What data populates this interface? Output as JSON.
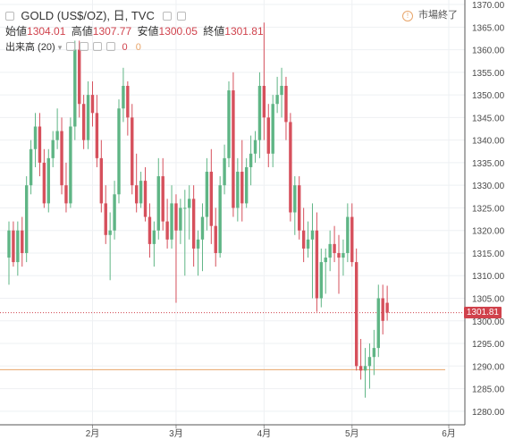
{
  "header": {
    "symbol": "GOLD (US$/OZ), 日, TVC",
    "market_status": "市場終了",
    "ohlc": {
      "open_label": "始値",
      "open": "1304.01",
      "high_label": "高値",
      "high": "1307.77",
      "low_label": "安値",
      "low": "1300.05",
      "close_label": "終値",
      "close": "1301.81"
    },
    "volume_label": "出来高 (20)",
    "volume_values": [
      "0",
      "0"
    ]
  },
  "colors": {
    "up": "#5fb585",
    "down": "#d6505c",
    "grid": "#eef0f3",
    "axis_text": "#4a4a4a",
    "price_line": "#d0424c",
    "level_line": "#e8a56a"
  },
  "last_price_label": "1301.81",
  "chart_data": {
    "type": "candlestick",
    "y_axis": {
      "min": 1277,
      "max": 1371,
      "ticks": [
        "1280.00",
        "1285.00",
        "1290.00",
        "1295.00",
        "1300.00",
        "1305.00",
        "1310.00",
        "1315.00",
        "1320.00",
        "1325.00",
        "1330.00",
        "1335.00",
        "1340.00",
        "1345.00",
        "1350.00",
        "1355.00",
        "1360.00",
        "1365.00",
        "1370.00"
      ]
    },
    "x_axis": {
      "labels": [
        {
          "label": "2月",
          "index": 19
        },
        {
          "label": "3月",
          "index": 38
        },
        {
          "label": "4月",
          "index": 58
        },
        {
          "label": "5月",
          "index": 78
        },
        {
          "label": "6月",
          "index": 100
        }
      ]
    },
    "horizontal_lines": [
      {
        "value": 1301.81,
        "style": "dotted",
        "color": "#d0424c"
      },
      {
        "value": 1289.2,
        "style": "solid",
        "color": "#e8a56a"
      }
    ],
    "ohlc": [
      [
        1314,
        1322,
        1308,
        1320
      ],
      [
        1320,
        1322,
        1312,
        1313
      ],
      [
        1313,
        1322,
        1310,
        1320
      ],
      [
        1320,
        1323,
        1312,
        1315
      ],
      [
        1315,
        1332,
        1313,
        1330
      ],
      [
        1330,
        1340,
        1328,
        1338
      ],
      [
        1338,
        1346,
        1334,
        1343
      ],
      [
        1343,
        1346,
        1332,
        1335
      ],
      [
        1335,
        1338,
        1325,
        1326
      ],
      [
        1326,
        1338,
        1324,
        1336
      ],
      [
        1336,
        1342,
        1334,
        1340
      ],
      [
        1340,
        1347,
        1338,
        1342
      ],
      [
        1342,
        1345,
        1328,
        1330
      ],
      [
        1330,
        1335,
        1324,
        1326
      ],
      [
        1326,
        1345,
        1325,
        1343
      ],
      [
        1343,
        1362,
        1340,
        1360
      ],
      [
        1360,
        1362,
        1345,
        1348
      ],
      [
        1348,
        1350,
        1338,
        1340
      ],
      [
        1340,
        1353,
        1338,
        1350
      ],
      [
        1350,
        1353,
        1343,
        1346
      ],
      [
        1346,
        1350,
        1334,
        1336
      ],
      [
        1336,
        1340,
        1324,
        1326
      ],
      [
        1326,
        1330,
        1317,
        1319
      ],
      [
        1319,
        1324,
        1309,
        1320
      ],
      [
        1320,
        1331,
        1318,
        1328
      ],
      [
        1328,
        1349,
        1326,
        1347
      ],
      [
        1347,
        1356,
        1344,
        1352
      ],
      [
        1352,
        1353,
        1341,
        1345
      ],
      [
        1345,
        1348,
        1328,
        1330
      ],
      [
        1330,
        1337,
        1324,
        1326
      ],
      [
        1326,
        1333,
        1325,
        1331
      ],
      [
        1331,
        1334,
        1322,
        1323
      ],
      [
        1323,
        1326,
        1314,
        1317
      ],
      [
        1317,
        1322,
        1312,
        1320
      ],
      [
        1320,
        1336,
        1318,
        1332
      ],
      [
        1332,
        1336,
        1320,
        1322
      ],
      [
        1322,
        1327,
        1316,
        1318
      ],
      [
        1318,
        1330,
        1316,
        1326
      ],
      [
        1326,
        1328,
        1304,
        1320
      ],
      [
        1320,
        1327,
        1317,
        1325
      ],
      [
        1325,
        1329,
        1310,
        1325
      ],
      [
        1325,
        1330,
        1318,
        1327
      ],
      [
        1327,
        1330,
        1312,
        1316
      ],
      [
        1316,
        1320,
        1310,
        1318
      ],
      [
        1318,
        1326,
        1311,
        1323
      ],
      [
        1323,
        1336,
        1320,
        1333
      ],
      [
        1333,
        1338,
        1317,
        1321
      ],
      [
        1321,
        1325,
        1312,
        1315
      ],
      [
        1315,
        1332,
        1314,
        1330
      ],
      [
        1330,
        1339,
        1328,
        1336
      ],
      [
        1336,
        1353,
        1334,
        1351
      ],
      [
        1351,
        1355,
        1323,
        1325
      ],
      [
        1325,
        1336,
        1322,
        1333
      ],
      [
        1333,
        1340,
        1322,
        1326
      ],
      [
        1326,
        1336,
        1325,
        1334
      ],
      [
        1334,
        1341,
        1330,
        1337
      ],
      [
        1337,
        1342,
        1335,
        1340
      ],
      [
        1340,
        1355,
        1336,
        1352
      ],
      [
        1352,
        1366,
        1340,
        1345
      ],
      [
        1345,
        1348,
        1334,
        1337
      ],
      [
        1337,
        1350,
        1334,
        1348
      ],
      [
        1348,
        1354,
        1346,
        1350
      ],
      [
        1350,
        1356,
        1345,
        1352
      ],
      [
        1352,
        1354,
        1340,
        1344
      ],
      [
        1344,
        1346,
        1322,
        1324
      ],
      [
        1324,
        1332,
        1319,
        1330
      ],
      [
        1330,
        1332,
        1318,
        1320
      ],
      [
        1320,
        1325,
        1313,
        1316
      ],
      [
        1316,
        1322,
        1314,
        1318
      ],
      [
        1318,
        1326,
        1305,
        1320
      ],
      [
        1320,
        1324,
        1302,
        1305
      ],
      [
        1305,
        1316,
        1303,
        1313
      ],
      [
        1313,
        1316,
        1306,
        1314
      ],
      [
        1314,
        1320,
        1311,
        1317
      ],
      [
        1317,
        1321,
        1313,
        1315
      ],
      [
        1315,
        1319,
        1306,
        1314
      ],
      [
        1314,
        1318,
        1310,
        1315
      ],
      [
        1315,
        1326,
        1313,
        1323
      ],
      [
        1323,
        1326,
        1312,
        1313
      ],
      [
        1313,
        1316,
        1289,
        1290
      ],
      [
        1290,
        1296,
        1287,
        1289
      ],
      [
        1289,
        1294,
        1283,
        1290
      ],
      [
        1290,
        1295,
        1285,
        1292
      ],
      [
        1292,
        1298,
        1288,
        1294
      ],
      [
        1294,
        1308,
        1292,
        1305
      ],
      [
        1305,
        1308,
        1297,
        1300
      ],
      [
        1304,
        1307.77,
        1300.05,
        1301.81
      ]
    ]
  }
}
